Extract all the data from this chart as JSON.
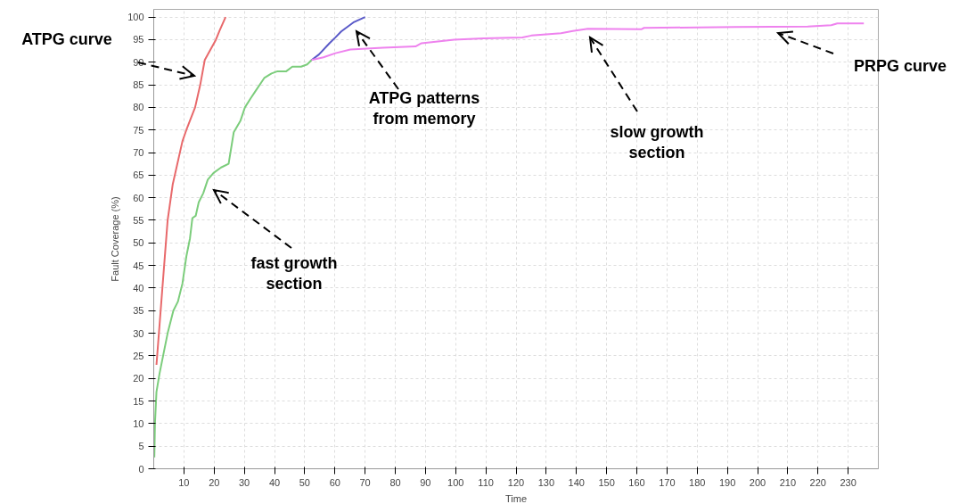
{
  "chart_data": {
    "type": "line",
    "xlabel": "Time",
    "ylabel": "Fault Coverage (%)",
    "xlim": [
      0,
      240
    ],
    "ylim": [
      0,
      101.7
    ],
    "xticks": [
      10,
      20,
      30,
      40,
      50,
      60,
      70,
      80,
      90,
      100,
      110,
      120,
      130,
      140,
      150,
      160,
      170,
      180,
      190,
      200,
      210,
      220,
      230
    ],
    "yticks": [
      0,
      5,
      10,
      15,
      20,
      25,
      30,
      35,
      40,
      45,
      50,
      55,
      60,
      65,
      70,
      75,
      80,
      85,
      90,
      95,
      100
    ],
    "grid": true,
    "line_style": "solid",
    "series": [
      {
        "color": "#e8696b",
        "x": [
          0.9,
          4.6,
          6.3,
          9.5,
          10.8,
          13.7,
          15.4,
          16.9,
          20.6,
          21.8,
          23.8
        ],
        "values": [
          23,
          55,
          63,
          72.5,
          75,
          80,
          85,
          90.5,
          95,
          97,
          100
        ]
      },
      {
        "color": "#7ccd7c",
        "x": [
          0.2,
          0.4,
          0.9,
          1.9,
          3.1,
          4.6,
          6.5,
          8.0,
          9.5,
          10.8,
          12.0,
          12.8,
          13.9,
          14.9,
          16.4,
          17.9,
          19.8,
          22.3,
          24.8,
          26.5,
          28.7,
          30.2,
          32.1,
          33.6,
          36.6,
          39.0,
          41.0,
          43.9,
          45.9,
          48.8,
          50.8,
          52.3
        ],
        "values": [
          2.5,
          10,
          17,
          21,
          25,
          30,
          35,
          37,
          41,
          47,
          51,
          55.5,
          56,
          59,
          61,
          64,
          65.5,
          66.7,
          67.5,
          74.5,
          77,
          80,
          82,
          83.5,
          86.5,
          87.5,
          88,
          88,
          89,
          89,
          89.5,
          90.5
        ]
      },
      {
        "color": "#5a5ac8",
        "x": [
          52.3,
          54.7,
          58.2,
          60.2,
          62.1,
          66.1,
          70.0
        ],
        "values": [
          90.5,
          91.7,
          94.2,
          95.5,
          96.8,
          98.8,
          100
        ]
      },
      {
        "color": "#ee82ee",
        "x": [
          52.3,
          56.2,
          60.2,
          65.1,
          75.9,
          86.7,
          88.7,
          99.5,
          109.3,
          122.1,
          125.1,
          134.9,
          138.8,
          143.8,
          161.5,
          162.4,
          193.0,
          216.6,
          224.4,
          226.4,
          235.2
        ],
        "values": [
          90.5,
          91.1,
          92.0,
          92.8,
          93.2,
          93.5,
          94.2,
          95.0,
          95.3,
          95.5,
          95.9,
          96.4,
          96.9,
          97.4,
          97.3,
          97.6,
          97.8,
          97.9,
          98.2,
          98.6,
          98.6
        ]
      }
    ],
    "annotations": [
      "ATPG curve",
      "fast growth\nsection",
      "ATPG patterns\nfrom memory",
      "slow growth\nsection",
      "PRPG curve"
    ]
  }
}
